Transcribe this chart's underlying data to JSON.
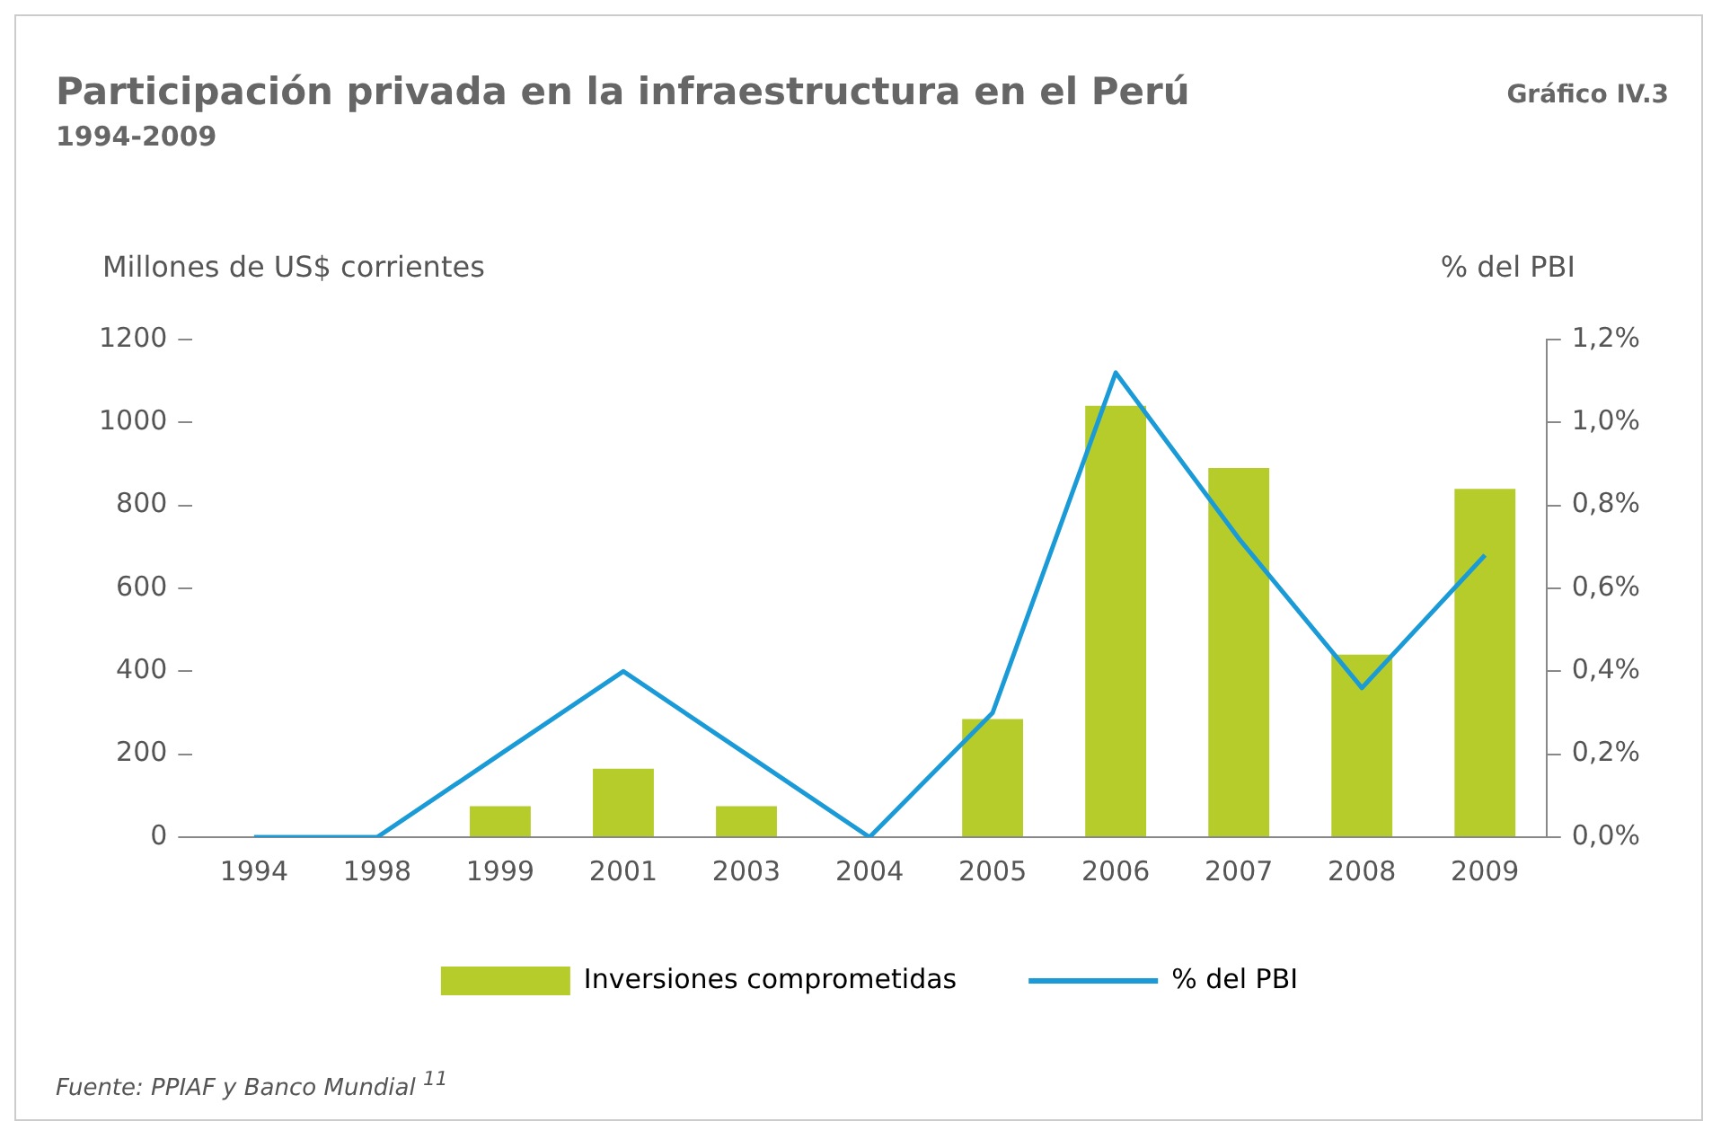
{
  "chart_data": {
    "type": "bar",
    "title": "Participación privada en la infraestructura en el Perú",
    "subtitle": "1994-2009",
    "ylabel": "Millones de US$ corrientes",
    "y2label": "% del PBI",
    "annotations": [
      "Gráfico IV.3",
      "Fuente: PPIAF y Banco Mundial $^{11}$"
    ],
    "categories": [
      "1994",
      "1998",
      "1999",
      "2001",
      "2003",
      "2004",
      "2005",
      "2006",
      "2007",
      "2008",
      "2009"
    ],
    "series": [
      {
        "name": "Inversiones comprometidas",
        "color": "#b5cc2b",
        "values": [
          0,
          0,
          75,
          165,
          75,
          0,
          285,
          1040,
          890,
          440,
          840
        ]
      },
      {
        "name": "% del PBI",
        "type": "line",
        "axis": "y2",
        "color": "#1a9bd7",
        "values": [
          0,
          0,
          0.2,
          0.4,
          0.2,
          0,
          0.3,
          1.12,
          0.72,
          0.36,
          0.68
        ]
      }
    ],
    "ylim": [
      0,
      1200
    ],
    "yticks": [
      0,
      200,
      400,
      600,
      800,
      1000,
      1200
    ],
    "y2lim": [
      0,
      1.2
    ],
    "y2ticks": [
      {
        "value": 0,
        "label": "0,0%"
      },
      {
        "value": 0.2,
        "label": "0,2%"
      },
      {
        "value": 0.4,
        "label": "0,4%"
      },
      {
        "value": 0.6,
        "label": "0,6%"
      },
      {
        "value": 0.8,
        "label": "0,8%"
      },
      {
        "value": 1,
        "label": "1,0%"
      },
      {
        "value": 1.2,
        "label": "1,2%"
      }
    ],
    "grid": false,
    "legend": "bottom",
    "marker": "none"
  }
}
